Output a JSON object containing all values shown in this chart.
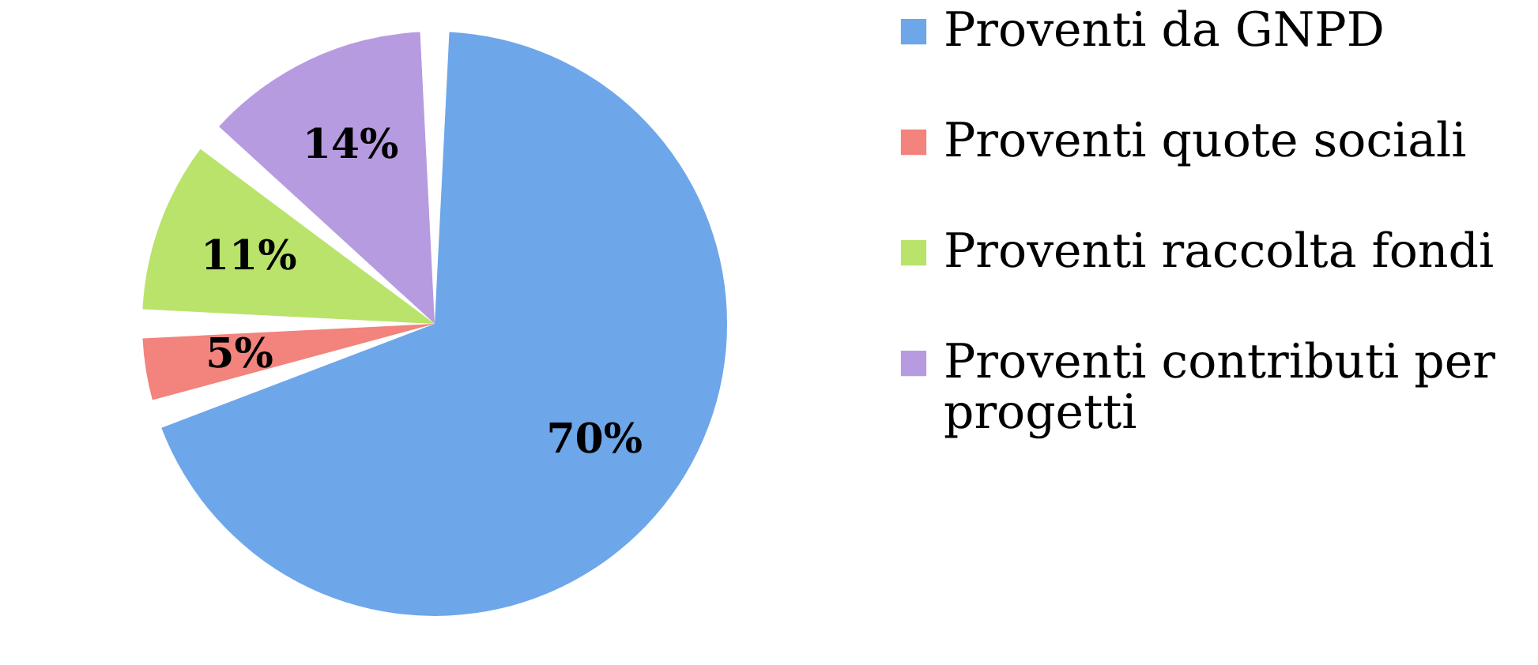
{
  "chart_data": {
    "type": "pie",
    "categories": [
      "Proventi da GNPD",
      "Proventi quote sociali",
      "Proventi raccolta fondi",
      "Proventi contributi per progetti"
    ],
    "values": [
      70,
      5,
      11,
      14
    ],
    "colors": [
      "#6ea6ea",
      "#f2837d",
      "#b9e36a",
      "#b79be0"
    ],
    "value_labels": [
      "70%",
      "5%",
      "11%",
      "14%"
    ],
    "legend": "right"
  }
}
